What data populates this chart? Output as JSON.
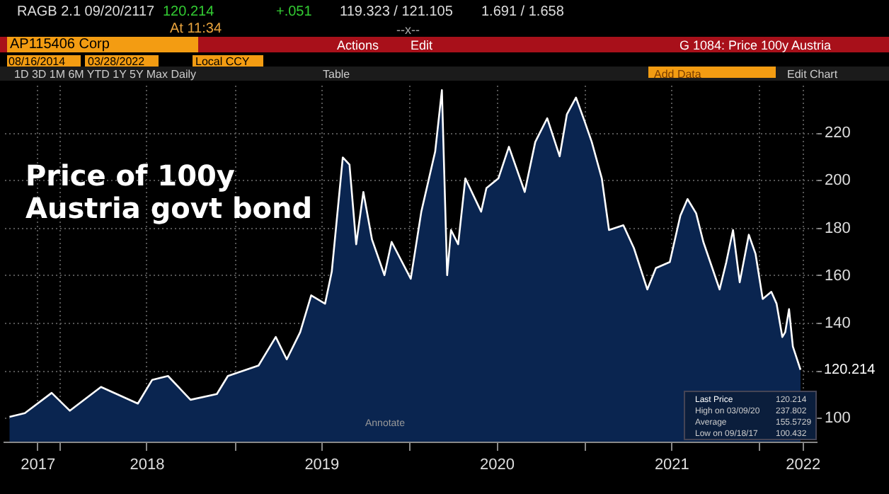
{
  "chart_data": {
    "type": "area",
    "title": "Price of 100y Austria govt bond",
    "x": [
      "2017-09-18",
      "2017-10-20",
      "2017-12-15",
      "2018-01-22",
      "2018-03-28",
      "2018-06-13",
      "2018-07-13",
      "2018-08-15",
      "2018-10-01",
      "2018-11-25",
      "2018-12-18",
      "2019-02-20",
      "2019-03-28",
      "2019-04-20",
      "2019-05-18",
      "2019-06-10",
      "2019-07-09",
      "2019-07-23",
      "2019-08-15",
      "2019-08-29",
      "2019-09-12",
      "2019-09-27",
      "2019-10-15",
      "2019-11-10",
      "2019-11-25",
      "2020-01-04",
      "2020-01-26",
      "2020-02-24",
      "2020-03-09",
      "2020-03-20",
      "2020-03-28",
      "2020-04-12",
      "2020-04-27",
      "2020-05-30",
      "2020-06-10",
      "2020-07-05",
      "2020-07-27",
      "2020-08-29",
      "2020-09-20",
      "2020-10-15",
      "2020-11-10",
      "2020-11-25",
      "2020-12-14",
      "2021-01-01",
      "2021-01-16",
      "2021-02-06",
      "2021-02-21",
      "2021-03-23",
      "2021-04-14",
      "2021-05-12",
      "2021-05-30",
      "2021-06-28",
      "2021-07-20",
      "2021-08-04",
      "2021-08-22",
      "2021-09-06",
      "2021-10-10",
      "2021-10-24",
      "2021-11-07",
      "2021-11-21",
      "2021-12-10",
      "2021-12-24",
      "2022-01-08",
      "2022-01-26",
      "2022-02-06",
      "2022-02-18",
      "2022-02-24",
      "2022-03-04",
      "2022-03-12",
      "2022-03-28"
    ],
    "series": [
      {
        "color": "#ffffff",
        "values": [
          100.4,
          102,
          110.5,
          103,
          113,
          106,
          116,
          117.6,
          107.6,
          110,
          117.6,
          122,
          134,
          124.6,
          136,
          151.5,
          148,
          161.5,
          209.5,
          206.5,
          173,
          195,
          175,
          160,
          174,
          158.5,
          186.7,
          212,
          237.802,
          160,
          179,
          173,
          200.7,
          186.7,
          196.6,
          200.7,
          214,
          195,
          216,
          226,
          210,
          227.6,
          234.7,
          224.7,
          216,
          200.7,
          179,
          181,
          171.4,
          154,
          163,
          165.5,
          185,
          192,
          186,
          174,
          154,
          165.5,
          179,
          157,
          177,
          169,
          150,
          153,
          148,
          134,
          136,
          145.7,
          130,
          120.214
        ]
      }
    ],
    "xlim": [
      "2017-09-04",
      "2022-05-01"
    ],
    "xticks": [
      {
        "value": "2017-11-15",
        "label": "2017"
      },
      {
        "value": "2018-01-01",
        "label": null
      },
      {
        "value": "2018-07-01",
        "label": "2018"
      },
      {
        "value": "2019-01-01",
        "label": null
      },
      {
        "value": "2019-07-01",
        "label": "2019"
      },
      {
        "value": "2020-01-01",
        "label": null
      },
      {
        "value": "2020-07-01",
        "label": "2020"
      },
      {
        "value": "2021-01-01",
        "label": null
      },
      {
        "value": "2021-07-01",
        "label": "2021"
      },
      {
        "value": "2022-01-01",
        "label": null
      },
      {
        "value": "2022-04-01",
        "label": "2022"
      }
    ],
    "ylim": [
      90,
      240
    ],
    "yticks": [
      100,
      {
        "value": 120,
        "label": null
      },
      140,
      160,
      180,
      200,
      220
    ],
    "grid": true,
    "annotations": [
      "RAGB 2.1 09/20/2117",
      "120.214",
      "+.051",
      "119.323 / 121.105",
      "1.691 / 1.658",
      "At 11:34",
      "--x--",
      "AP115406 Corp",
      "Actions",
      "Edit",
      "G 1084: Price 100y Austria",
      "08/16/2014",
      "03/28/2022",
      "Local CCY",
      "1D 3D 1M 6M YTD 1Y 5Y Max Daily",
      "Table",
      "Add Data",
      "Edit Chart",
      "Annotate",
      "Last Price",
      "120.214",
      "High on 03/09/20",
      "237.802",
      "Average",
      "155.5729",
      "Low on 09/18/17",
      "100.432",
      {
        "text": "120.214",
        "x": "2022-03-28",
        "y": 120.214
      }
    ]
  }
}
